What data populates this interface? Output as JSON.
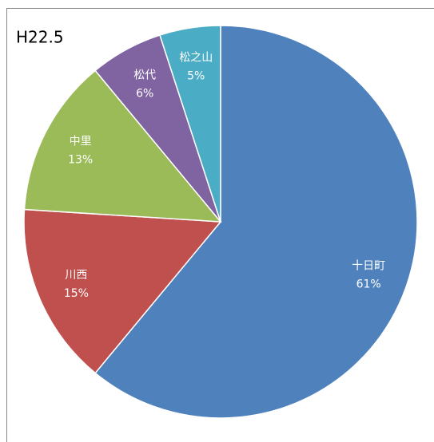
{
  "chart_data": {
    "type": "pie",
    "title": "H22.5",
    "categories": [
      "十日町",
      "川西",
      "中里",
      "松代",
      "松之山"
    ],
    "values": [
      61,
      15,
      13,
      6,
      5
    ],
    "value_labels": [
      "61%",
      "15%",
      "13%",
      "6%",
      "5%"
    ],
    "colors": [
      "#4f81bd",
      "#c0504d",
      "#9bbb59",
      "#8064a2",
      "#4bacc6"
    ]
  }
}
